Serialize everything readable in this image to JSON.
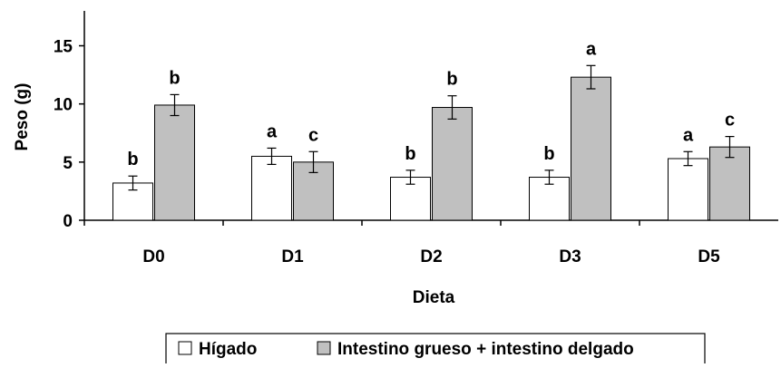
{
  "chart_data": {
    "type": "bar",
    "title": "",
    "xlabel": "Dieta",
    "ylabel": "Peso (g)",
    "ylim": [
      0,
      18
    ],
    "yticks": [
      0,
      5,
      10,
      15
    ],
    "categories": [
      "D0",
      "D1",
      "D2",
      "D3",
      "D5"
    ],
    "series": [
      {
        "name": "Hígado",
        "color": "#ffffff",
        "values": [
          3.2,
          5.5,
          3.7,
          3.7,
          5.3
        ],
        "errors": [
          0.6,
          0.7,
          0.6,
          0.6,
          0.6
        ],
        "labels": [
          "b",
          "a",
          "b",
          "b",
          "a"
        ]
      },
      {
        "name": "Intestino grueso + intestino delgado",
        "color": "#c0c0c0",
        "values": [
          9.9,
          5.0,
          9.7,
          12.3,
          6.3
        ],
        "errors": [
          0.9,
          0.9,
          1.0,
          1.0,
          0.9
        ],
        "labels": [
          "b",
          "c",
          "b",
          "a",
          "c"
        ]
      }
    ],
    "grid": false,
    "legend_position": "bottom"
  }
}
